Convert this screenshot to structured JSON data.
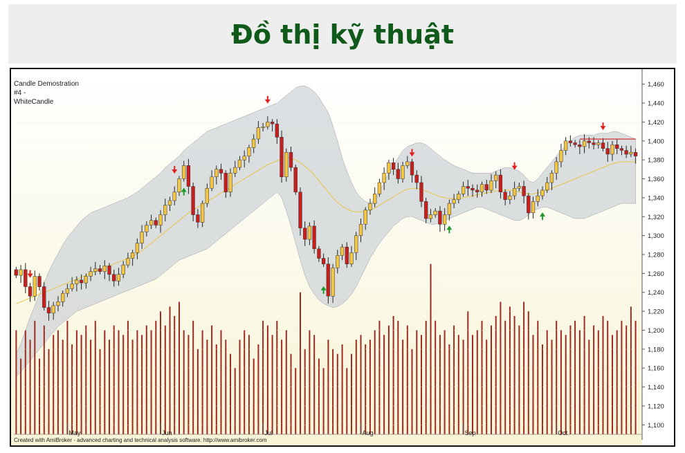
{
  "page": {
    "title": "Đồ thị kỹ thuật"
  },
  "legend": {
    "line1": "Candle Demostration",
    "line2": "#4 -",
    "line3": "WhiteCandle"
  },
  "footer": {
    "credit": "Created with AmiBroker - advanced charting and technical analysis software. http://www.amibroker.com"
  },
  "chart_data": {
    "type": "candlestick",
    "ylim": [
      1090,
      1470
    ],
    "y_ticks": [
      1100,
      1120,
      1140,
      1160,
      1180,
      1200,
      1220,
      1240,
      1260,
      1280,
      1300,
      1320,
      1340,
      1360,
      1380,
      1400,
      1420,
      1440,
      1460
    ],
    "y_tick_labels": [
      "1,100",
      "1,120",
      "1,140",
      "1,160",
      "1,180",
      "1,200",
      "1,220",
      "1,240",
      "1,260",
      "1,280",
      "1,300",
      "1,320",
      "1,340",
      "1,360",
      "1,380",
      "1,400",
      "1,420",
      "1,440",
      "1,460"
    ],
    "x_ticks": [
      {
        "index": 11,
        "label": "May"
      },
      {
        "index": 31,
        "label": "Jun"
      },
      {
        "index": 53,
        "label": "Jul"
      },
      {
        "index": 74,
        "label": "Aug"
      },
      {
        "index": 96,
        "label": "Sep"
      },
      {
        "index": 116,
        "label": "Oct"
      }
    ],
    "bars": 134,
    "close": [
      1258,
      1264,
      1246,
      1236,
      1257,
      1246,
      1224,
      1218,
      1226,
      1230,
      1239,
      1244,
      1249,
      1253,
      1250,
      1257,
      1262,
      1265,
      1262,
      1268,
      1259,
      1252,
      1259,
      1269,
      1276,
      1282,
      1292,
      1304,
      1311,
      1316,
      1311,
      1322,
      1332,
      1337,
      1346,
      1360,
      1374,
      1352,
      1322,
      1314,
      1334,
      1350,
      1362,
      1370,
      1366,
      1346,
      1366,
      1372,
      1380,
      1384,
      1393,
      1402,
      1414,
      1415,
      1420,
      1418,
      1404,
      1362,
      1388,
      1372,
      1346,
      1308,
      1296,
      1310,
      1286,
      1276,
      1270,
      1236,
      1266,
      1279,
      1288,
      1270,
      1282,
      1300,
      1312,
      1327,
      1334,
      1344,
      1356,
      1366,
      1377,
      1370,
      1360,
      1374,
      1378,
      1364,
      1356,
      1336,
      1318,
      1322,
      1326,
      1312,
      1322,
      1334,
      1338,
      1344,
      1352,
      1350,
      1348,
      1346,
      1354,
      1348,
      1358,
      1364,
      1346,
      1338,
      1342,
      1350,
      1352,
      1342,
      1324,
      1336,
      1342,
      1348,
      1356,
      1366,
      1378,
      1390,
      1400,
      1398,
      1396,
      1394,
      1400,
      1398,
      1396,
      1398,
      1392,
      1386,
      1396,
      1392,
      1390,
      1386,
      1388,
      1384
    ],
    "volume": [
      1200,
      1170,
      1200,
      1190,
      1210,
      1170,
      1205,
      1180,
      1195,
      1200,
      1190,
      1210,
      1185,
      1200,
      1195,
      1205,
      1190,
      1210,
      1180,
      1200,
      1190,
      1205,
      1200,
      1195,
      1210,
      1190,
      1200,
      1195,
      1205,
      1200,
      1210,
      1220,
      1205,
      1225,
      1215,
      1230,
      1200,
      1195,
      1210,
      1180,
      1200,
      1190,
      1205,
      1185,
      1200,
      1190,
      1175,
      1160,
      1190,
      1200,
      1195,
      1170,
      1185,
      1210,
      1205,
      1195,
      1210,
      1190,
      1200,
      1175,
      1160,
      1240,
      1180,
      1200,
      1195,
      1170,
      1160,
      1190,
      1180,
      1175,
      1185,
      1160,
      1175,
      1190,
      1195,
      1185,
      1190,
      1200,
      1210,
      1195,
      1205,
      1215,
      1210,
      1190,
      1205,
      1180,
      1200,
      1195,
      1210,
      1270,
      1210,
      1195,
      1200,
      1185,
      1205,
      1195,
      1190,
      1220,
      1195,
      1200,
      1210,
      1190,
      1205,
      1215,
      1230,
      1210,
      1225,
      1215,
      1205,
      1230,
      1220,
      1195,
      1210,
      1185,
      1200,
      1190,
      1210,
      1200,
      1195,
      1205,
      1210,
      1200,
      1215,
      1190,
      1205,
      1200,
      1215,
      1210,
      1195,
      1200,
      1210,
      1205,
      1225,
      1210
    ],
    "bbands": {
      "upper": [
        1175,
        1186,
        1200,
        1214,
        1226,
        1238,
        1250,
        1262,
        1272,
        1281,
        1290,
        1298,
        1304,
        1310,
        1316,
        1320,
        1324,
        1326,
        1328,
        1330,
        1332,
        1334,
        1336,
        1338,
        1340,
        1343,
        1346,
        1350,
        1354,
        1358,
        1362,
        1366,
        1372,
        1376,
        1380,
        1384,
        1390,
        1394,
        1398,
        1402,
        1406,
        1410,
        1412,
        1414,
        1416,
        1418,
        1420,
        1422,
        1424,
        1426,
        1428,
        1430,
        1432,
        1434,
        1436,
        1438,
        1440,
        1444,
        1448,
        1452,
        1456,
        1458,
        1458,
        1456,
        1452,
        1446,
        1438,
        1430,
        1416,
        1400,
        1382,
        1368,
        1356,
        1346,
        1340,
        1336,
        1334,
        1338,
        1346,
        1356,
        1366,
        1374,
        1382,
        1390,
        1394,
        1396,
        1398,
        1398,
        1396,
        1392,
        1388,
        1384,
        1380,
        1377,
        1374,
        1372,
        1370,
        1368,
        1366,
        1366,
        1366,
        1366,
        1366,
        1368,
        1370,
        1372,
        1372,
        1370,
        1368,
        1364,
        1358,
        1356,
        1360,
        1366,
        1372,
        1378,
        1384,
        1390,
        1395,
        1400,
        1404,
        1406,
        1406,
        1406,
        1406,
        1408,
        1408,
        1408,
        1410,
        1410,
        1408,
        1406,
        1404,
        1402
      ],
      "middle": [
        1228,
        1230,
        1232,
        1234,
        1236,
        1238,
        1240,
        1242,
        1244,
        1246,
        1248,
        1250,
        1252,
        1254,
        1256,
        1258,
        1260,
        1262,
        1264,
        1266,
        1268,
        1270,
        1272,
        1274,
        1276,
        1278,
        1281,
        1284,
        1288,
        1292,
        1296,
        1300,
        1304,
        1308,
        1312,
        1316,
        1320,
        1324,
        1327,
        1330,
        1333,
        1336,
        1339,
        1342,
        1345,
        1348,
        1351,
        1354,
        1357,
        1360,
        1363,
        1366,
        1369,
        1372,
        1375,
        1377,
        1379,
        1381,
        1382,
        1382,
        1380,
        1377,
        1373,
        1369,
        1364,
        1358,
        1352,
        1346,
        1340,
        1335,
        1331,
        1328,
        1326,
        1325,
        1325,
        1326,
        1327,
        1329,
        1332,
        1335,
        1338,
        1341,
        1344,
        1347,
        1349,
        1350,
        1350,
        1349,
        1347,
        1345,
        1343,
        1341,
        1340,
        1339,
        1339,
        1339,
        1340,
        1341,
        1342,
        1343,
        1344,
        1345,
        1346,
        1347,
        1348,
        1348,
        1348,
        1347,
        1346,
        1345,
        1344,
        1344,
        1345,
        1346,
        1348,
        1350,
        1352,
        1354,
        1356,
        1358,
        1360,
        1362,
        1364,
        1366,
        1368,
        1370,
        1372,
        1374,
        1376,
        1377,
        1378,
        1378,
        1378,
        1378
      ],
      "lower": [
        1151,
        1156,
        1162,
        1168,
        1174,
        1180,
        1186,
        1192,
        1198,
        1204,
        1208,
        1212,
        1216,
        1220,
        1222,
        1224,
        1226,
        1228,
        1230,
        1232,
        1234,
        1236,
        1238,
        1240,
        1242,
        1244,
        1246,
        1248,
        1250,
        1252,
        1254,
        1258,
        1262,
        1266,
        1270,
        1274,
        1276,
        1278,
        1280,
        1282,
        1284,
        1286,
        1290,
        1294,
        1298,
        1302,
        1306,
        1310,
        1314,
        1318,
        1322,
        1326,
        1330,
        1334,
        1338,
        1342,
        1346,
        1340,
        1326,
        1310,
        1292,
        1274,
        1258,
        1246,
        1238,
        1232,
        1228,
        1226,
        1224,
        1225,
        1228,
        1232,
        1238,
        1246,
        1256,
        1266,
        1276,
        1284,
        1292,
        1298,
        1304,
        1310,
        1314,
        1318,
        1320,
        1320,
        1318,
        1316,
        1314,
        1312,
        1312,
        1314,
        1316,
        1318,
        1320,
        1322,
        1324,
        1326,
        1328,
        1330,
        1330,
        1328,
        1326,
        1324,
        1322,
        1320,
        1318,
        1316,
        1316,
        1318,
        1322,
        1326,
        1328,
        1330,
        1330,
        1328,
        1326,
        1324,
        1322,
        1320,
        1318,
        1318,
        1318,
        1320,
        1322,
        1324,
        1326,
        1328,
        1330,
        1332,
        1334,
        1334,
        1334,
        1334
      ]
    },
    "sell_arrows": [
      3,
      34,
      54,
      85,
      107,
      126
    ],
    "buy_arrows": [
      36,
      66,
      93,
      113
    ],
    "resistance_line": {
      "from_index": 121,
      "to_index": 133,
      "value": 1402
    }
  }
}
